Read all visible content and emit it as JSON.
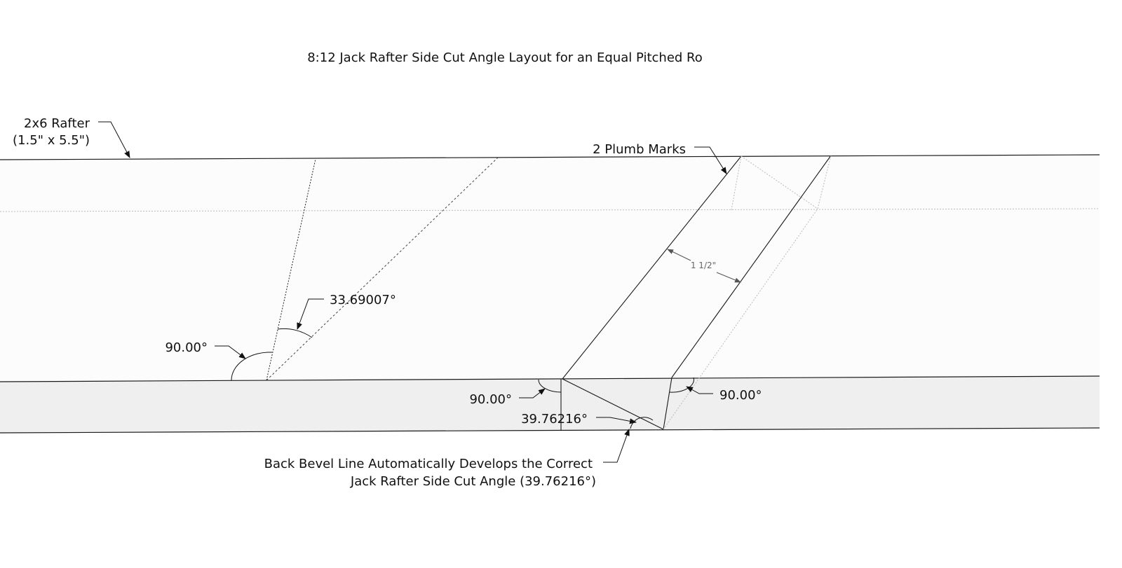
{
  "title": "8:12 Jack Rafter Side Cut Angle Layout for an Equal Pitched Ro",
  "labels": {
    "rafter_line1": "2x6 Rafter",
    "rafter_line2": "(1.5\" x 5.5\")",
    "plumb_marks": "2 Plumb Marks",
    "angle_top": "33.69007°",
    "angle_left": "90.00°",
    "angle_bottom_left": "90.00°",
    "angle_bottom_right": "90.00°",
    "angle_bevel": "39.76216°",
    "dimension": "1 1/2\"",
    "note_line1": "Back Bevel Line Automatically Develops the Correct",
    "note_line2": "Jack Rafter Side Cut Angle (39.76216°)"
  },
  "colors": {
    "top_face": "#fcfcfc",
    "side_face": "#efefef",
    "edge": "#1a1a1a",
    "hidden": "#bbbbbb"
  }
}
